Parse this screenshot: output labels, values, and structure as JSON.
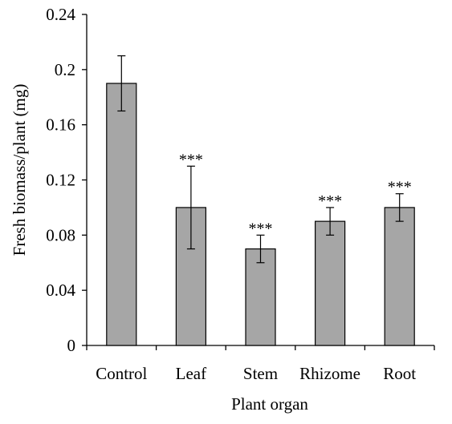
{
  "chart_data": {
    "type": "bar",
    "xlabel": "Plant organ",
    "ylabel": "Fresh biomass/plant (mg)",
    "ylim": [
      0,
      0.24
    ],
    "y_ticks": [
      0,
      0.04,
      0.08,
      0.12,
      0.16,
      0.2,
      0.24
    ],
    "y_tick_labels": [
      "0",
      "0.04",
      "0.08",
      "0.12",
      "0.16",
      "0.2",
      "0.24"
    ],
    "categories": [
      "Control",
      "Leaf",
      "Stem",
      "Rhizome",
      "Root"
    ],
    "values": [
      0.19,
      0.1,
      0.07,
      0.09,
      0.1
    ],
    "error_upper": [
      0.21,
      0.13,
      0.08,
      0.1,
      0.11
    ],
    "error_lower": [
      0.17,
      0.07,
      0.06,
      0.08,
      0.09
    ],
    "significance": [
      "",
      "***",
      "***",
      "***",
      "***"
    ],
    "bar_color": "#a6a6a6",
    "bar_stroke": "#000000",
    "grid": false,
    "legend": "none"
  }
}
